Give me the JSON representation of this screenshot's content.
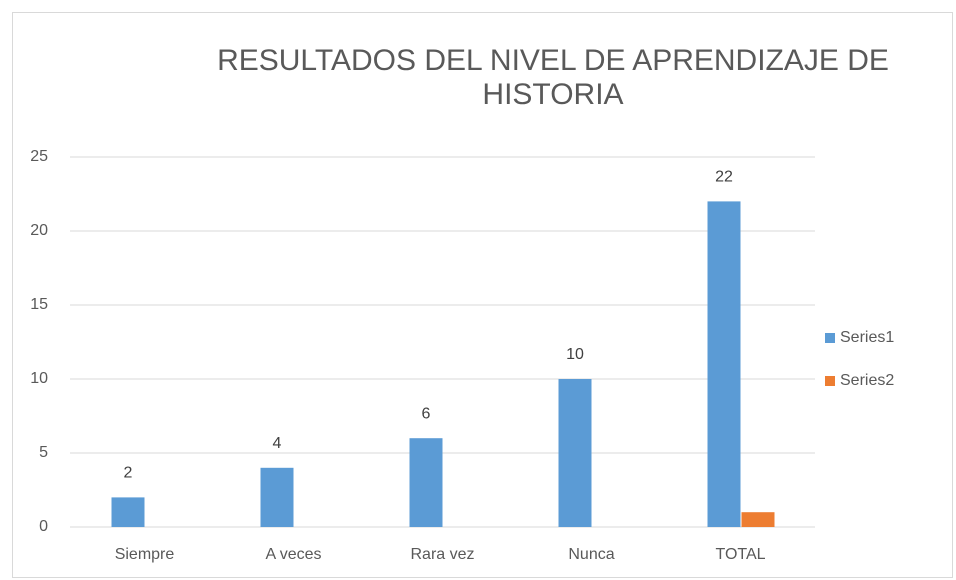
{
  "chart_data": {
    "type": "bar",
    "title": "RESULTADOS DEL NIVEL DE APRENDIZAJE DE HISTORIA",
    "categories": [
      "Siempre",
      "A veces",
      "Rara vez",
      "Nunca",
      "TOTAL"
    ],
    "series": [
      {
        "name": "Series1",
        "color": "#5b9bd5",
        "values": [
          2,
          4,
          6,
          10,
          22
        ]
      },
      {
        "name": "Series2",
        "color": "#ed7d31",
        "values": [
          null,
          null,
          null,
          null,
          1
        ]
      }
    ],
    "ylim": [
      0,
      25
    ],
    "yticks": [
      0,
      5,
      10,
      15,
      20,
      25
    ],
    "grid": true,
    "legend": "right"
  }
}
